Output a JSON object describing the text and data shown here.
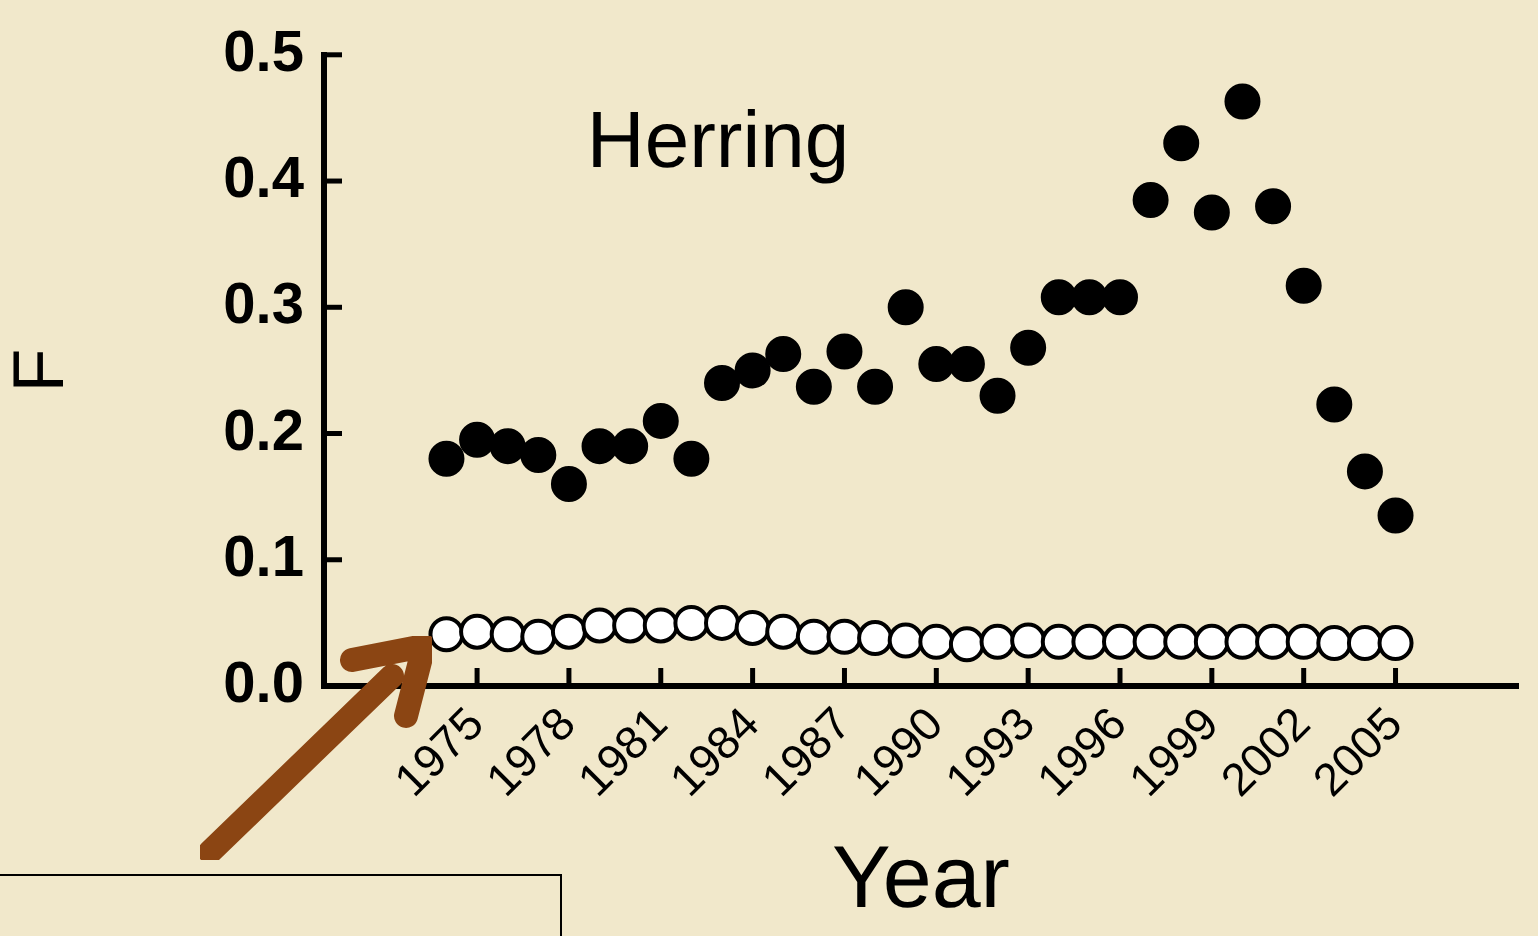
{
  "chart_data": {
    "type": "scatter",
    "xlabel": "Year",
    "ylabel": "F",
    "annotations": [
      "Herring"
    ],
    "x": [
      1974,
      1975,
      1976,
      1977,
      1978,
      1979,
      1980,
      1981,
      1982,
      1983,
      1984,
      1985,
      1986,
      1987,
      1988,
      1989,
      1990,
      1991,
      1992,
      1993,
      1994,
      1995,
      1996,
      1997,
      1998,
      1999,
      2000,
      2001,
      2002,
      2003,
      2004,
      2005
    ],
    "series": [
      {
        "color": "#000000",
        "values": [
          0.18,
          0.195,
          0.19,
          0.183,
          0.16,
          0.19,
          0.19,
          0.21,
          0.18,
          0.24,
          0.25,
          0.263,
          0.237,
          0.265,
          0.237,
          0.3,
          0.255,
          0.255,
          0.23,
          0.268,
          0.308,
          0.308,
          0.308,
          0.385,
          0.43,
          0.375,
          0.463,
          0.38,
          0.317,
          0.223,
          0.17,
          0.135
        ]
      },
      {
        "color": "#ffffff",
        "values": [
          0.041,
          0.043,
          0.041,
          0.039,
          0.043,
          0.048,
          0.048,
          0.048,
          0.05,
          0.05,
          0.046,
          0.043,
          0.039,
          0.039,
          0.038,
          0.036,
          0.035,
          0.033,
          0.035,
          0.036,
          0.035,
          0.035,
          0.035,
          0.035,
          0.035,
          0.035,
          0.035,
          0.035,
          0.035,
          0.034,
          0.034,
          0.034
        ]
      }
    ],
    "xlim": [
      1970,
      2009
    ],
    "xticks": [
      1975,
      1978,
      1981,
      1984,
      1987,
      1990,
      1993,
      1996,
      1999,
      2002,
      2005
    ],
    "ylim": [
      0,
      0.5
    ],
    "yticks": [
      {
        "value": 0,
        "label": "0.0"
      },
      0.1,
      0.2,
      0.3,
      0.4,
      0.5
    ],
    "grid": false,
    "legend": false,
    "marker": "circle"
  }
}
